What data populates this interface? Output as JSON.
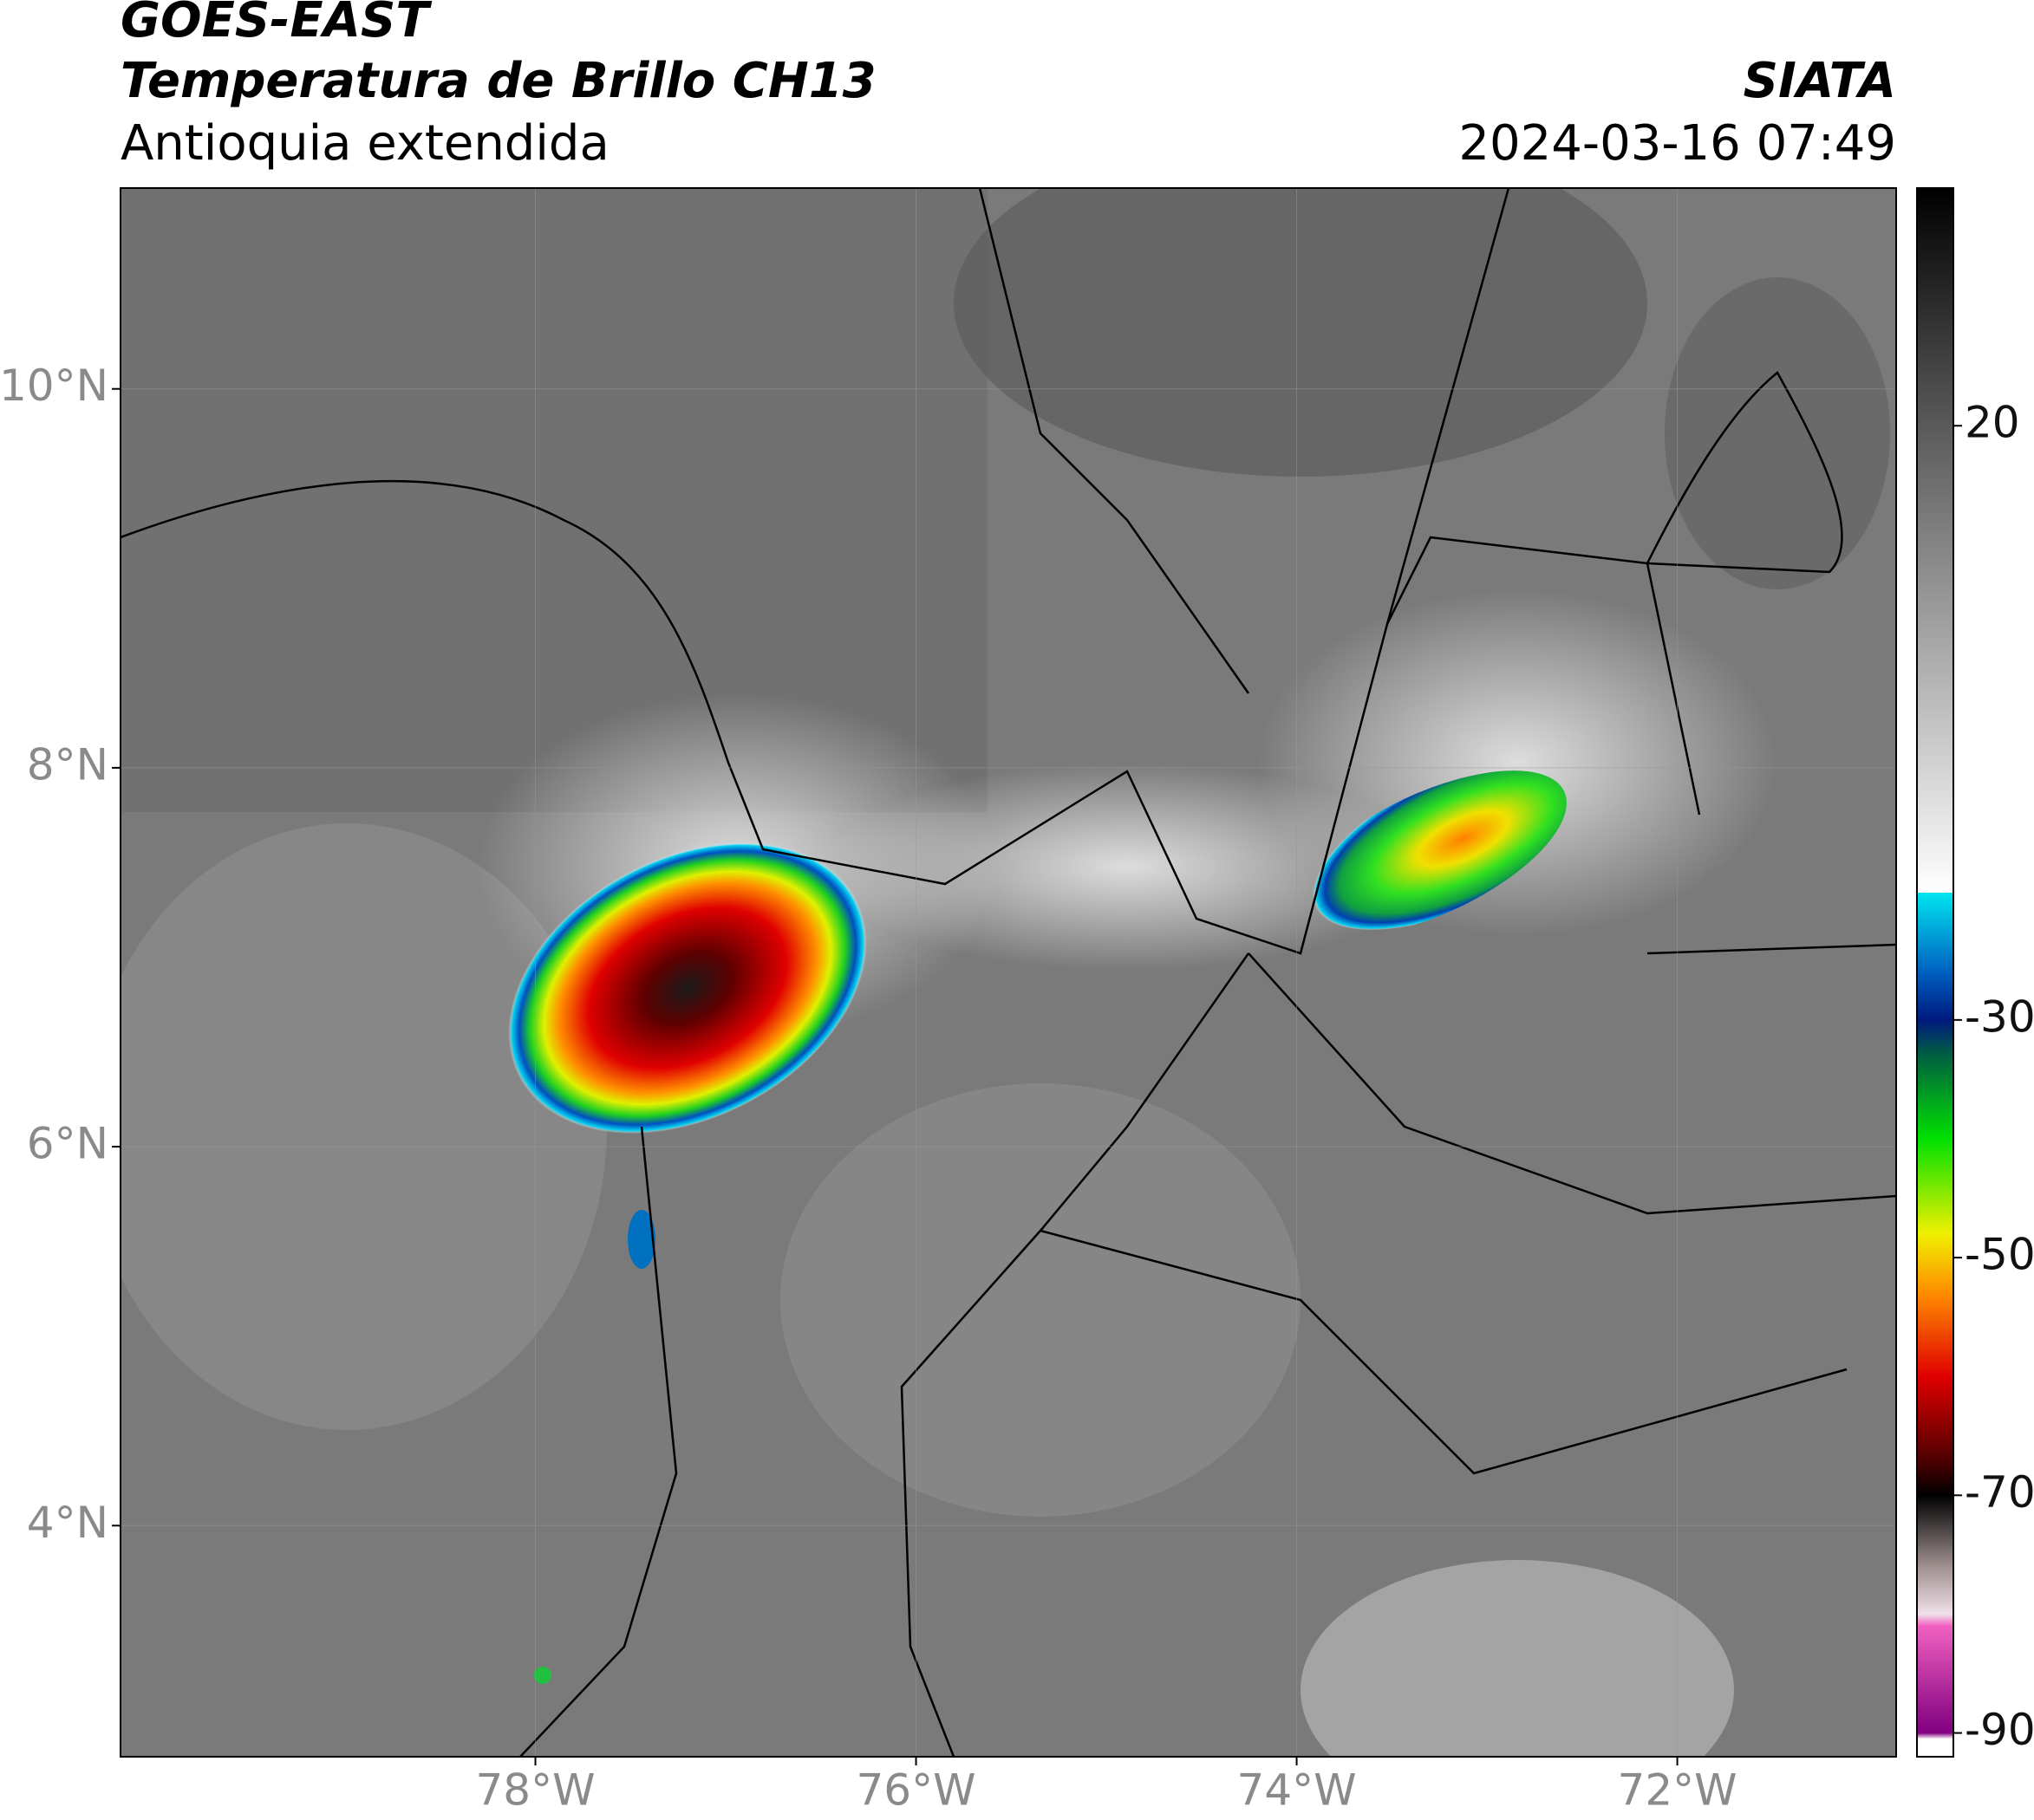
{
  "chart_data": {
    "type": "map",
    "title": "GOES-EAST",
    "subtitle": "Temperatura de Brillo CH13",
    "region": "Antioquia extendida",
    "source": "SIATA",
    "datetime": "2024-03-16 07:49",
    "xlim": [
      -80.18,
      -70.85
    ],
    "ylim": [
      2.78,
      11.06
    ],
    "xticks": [
      {
        "value": -78,
        "label": "78°W"
      },
      {
        "value": -76,
        "label": "76°W"
      },
      {
        "value": -74,
        "label": "74°W"
      },
      {
        "value": -72,
        "label": "72°W"
      }
    ],
    "yticks": [
      {
        "value": 4,
        "label": "4°N"
      },
      {
        "value": 6,
        "label": "6°N"
      },
      {
        "value": 8,
        "label": "8°N"
      },
      {
        "value": 10,
        "label": "10°N"
      }
    ],
    "grid": true,
    "colorbar": {
      "clim": [
        -92,
        40
      ],
      "ticks": [
        20,
        -30,
        -50,
        -70,
        -90
      ],
      "stops": [
        {
          "value": 40,
          "color": "#000000"
        },
        {
          "value": 20,
          "color": "#5a5a5a"
        },
        {
          "value": -19.3,
          "color": "#ffffff"
        },
        {
          "value": -19.3,
          "color": "#00e5f0"
        },
        {
          "value": -26,
          "color": "#0060c0"
        },
        {
          "value": -30,
          "color": "#001a80"
        },
        {
          "value": -33,
          "color": "#006040"
        },
        {
          "value": -40,
          "color": "#00e000"
        },
        {
          "value": -48,
          "color": "#f0f000"
        },
        {
          "value": -53,
          "color": "#ff8c00"
        },
        {
          "value": -60,
          "color": "#e00000"
        },
        {
          "value": -67,
          "color": "#500000"
        },
        {
          "value": -70,
          "color": "#000000"
        },
        {
          "value": -76,
          "color": "#a09090"
        },
        {
          "value": -80,
          "color": "#f0e0e8"
        },
        {
          "value": -81,
          "color": "#f060c0"
        },
        {
          "value": -90,
          "color": "#800080"
        },
        {
          "value": -90.5,
          "color": "#ffffff"
        }
      ]
    }
  }
}
